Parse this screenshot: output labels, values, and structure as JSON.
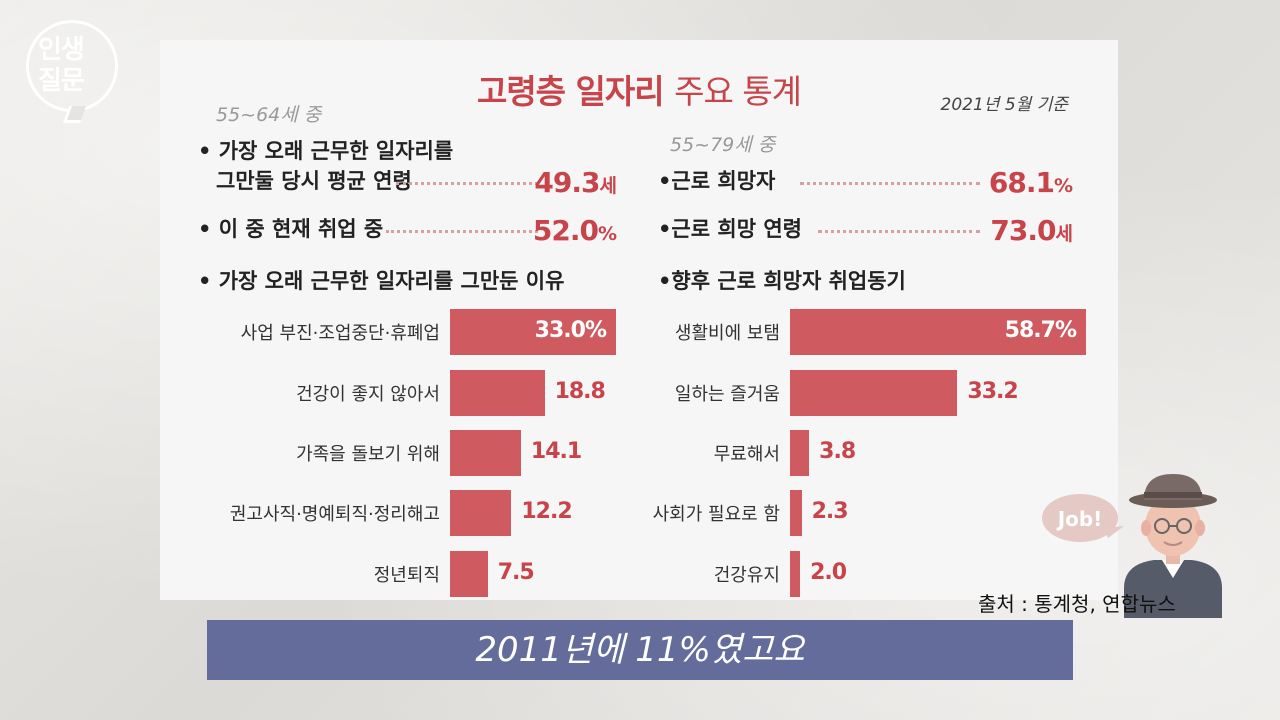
{
  "logo": {
    "line1": "인생",
    "line2": "질문"
  },
  "header": {
    "title_bold": "고령층 일자리",
    "title_light": "주요 통계",
    "date": "2021년 5월 기준"
  },
  "left": {
    "subtitle": "55~64세 중",
    "stat1": {
      "label_line1": "• 가장 오래 근무한 일자리를",
      "label_line2": "그만둘 당시 평균 연령",
      "value": "49.3",
      "unit": "세"
    },
    "stat2": {
      "label": "• 이 중 현재 취업 중",
      "value": "52.0",
      "unit": "%"
    },
    "section": "• 가장 오래 근무한 일자리를 그만둔 이유"
  },
  "right": {
    "subtitle": "55~79세 중",
    "stat1": {
      "label": "•근로 희망자",
      "value": "68.1",
      "unit": "%"
    },
    "stat2": {
      "label": "•근로 희망 연령",
      "value": "73.0",
      "unit": "세"
    },
    "section": "•향후 근로 희망자 취업동기"
  },
  "figure": {
    "speech": "Job!"
  },
  "source": "출처 : 통계청, 연합뉴스",
  "caption": "2011년에 11%였고요",
  "chart_data": [
    {
      "type": "bar",
      "title": "가장 오래 근무한 일자리를 그만둔 이유",
      "categories": [
        "사업 부진·조업중단·휴폐업",
        "건강이 좋지 않아서",
        "가족을 돌보기 위해",
        "권고사직·명예퇴직·정리해고",
        "정년퇴직"
      ],
      "values": [
        33.0,
        18.8,
        14.1,
        12.2,
        7.5
      ],
      "value_labels": [
        "33.0%",
        "18.8",
        "14.1",
        "12.2",
        "7.5"
      ],
      "orientation": "horizontal",
      "color": "#cf5a5f"
    },
    {
      "type": "bar",
      "title": "향후 근로 희망자 취업동기",
      "categories": [
        "생활비에 보탬",
        "일하는 즐거움",
        "무료해서",
        "사회가 필요로 함",
        "건강유지"
      ],
      "values": [
        58.7,
        33.2,
        3.8,
        2.3,
        2.0
      ],
      "value_labels": [
        "58.7%",
        "33.2",
        "3.8",
        "2.3",
        "2.0"
      ],
      "orientation": "horizontal",
      "color": "#cf5a5f"
    }
  ]
}
